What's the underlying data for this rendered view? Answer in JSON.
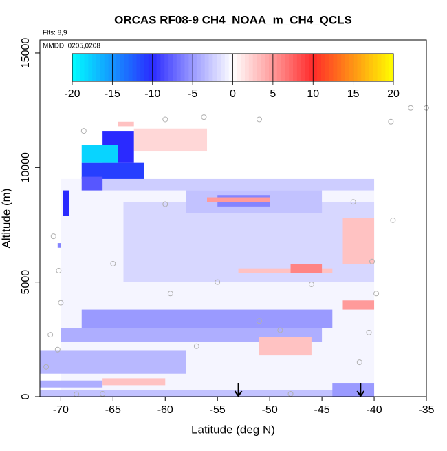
{
  "chart_data": {
    "type": "heatmap",
    "title": "ORCAS RF08-9 CH4_NOAA_m_CH4_QCLS",
    "flights": "Flts: 8,9",
    "dates": "MMDD: 0205,0208",
    "xlabel": "Latitude (deg N)",
    "ylabel": "Altitude (m)",
    "xlim": [
      -72,
      -35
    ],
    "ylim": [
      0,
      15570
    ],
    "xticks": [
      -70,
      -65,
      -60,
      -55,
      -50,
      -45,
      -40,
      -35
    ],
    "yticks": [
      0,
      5000,
      10000,
      15000
    ],
    "colorbar": {
      "lim": [
        -20,
        20
      ],
      "ticks": [
        -20,
        -15,
        -10,
        -5,
        0,
        5,
        10,
        15,
        20
      ],
      "stops": [
        [
          -20,
          "#00ffff"
        ],
        [
          -10,
          "#2a2aff"
        ],
        [
          -5,
          "#9a9aff"
        ],
        [
          0,
          "#ffffff"
        ],
        [
          5,
          "#ff9a9a"
        ],
        [
          10,
          "#ff2a2a"
        ],
        [
          20,
          "#ffff00"
        ]
      ]
    },
    "cells": [
      {
        "x": [
          -70,
          -40
        ],
        "y": [
          0,
          9500
        ],
        "value": -0.5
      },
      {
        "x": [
          -72,
          -40
        ],
        "y": [
          0,
          300
        ],
        "value": -3
      },
      {
        "x": [
          -68,
          -40
        ],
        "y": [
          9000,
          9500
        ],
        "value": -2.5
      },
      {
        "x": [
          -64,
          -40
        ],
        "y": [
          5000,
          8500
        ],
        "value": -2
      },
      {
        "x": [
          -58,
          -45
        ],
        "y": [
          8000,
          9000
        ],
        "value": -3
      },
      {
        "x": [
          -55,
          -50
        ],
        "y": [
          8300,
          8800
        ],
        "value": -6
      },
      {
        "x": [
          -56,
          -50
        ],
        "y": [
          8500,
          8700
        ],
        "value": 5
      },
      {
        "x": [
          -53,
          -44
        ],
        "y": [
          5400,
          5600
        ],
        "value": 3
      },
      {
        "x": [
          -48,
          -45
        ],
        "y": [
          5400,
          5800
        ],
        "value": 6
      },
      {
        "x": [
          -43,
          -40
        ],
        "y": [
          5800,
          7800
        ],
        "value": 3
      },
      {
        "x": [
          -43,
          -40
        ],
        "y": [
          3800,
          4200
        ],
        "value": 5
      },
      {
        "x": [
          -68,
          -44
        ],
        "y": [
          3000,
          3800
        ],
        "value": -5
      },
      {
        "x": [
          -70,
          -45
        ],
        "y": [
          2400,
          3000
        ],
        "value": -4
      },
      {
        "x": [
          -51,
          -46
        ],
        "y": [
          1800,
          2600
        ],
        "value": 3
      },
      {
        "x": [
          -72,
          -58
        ],
        "y": [
          1000,
          2000
        ],
        "value": -3.5
      },
      {
        "x": [
          -72,
          -66
        ],
        "y": [
          400,
          700
        ],
        "value": -4
      },
      {
        "x": [
          -66,
          -60
        ],
        "y": [
          500,
          800
        ],
        "value": 3
      },
      {
        "x": [
          -44,
          -40
        ],
        "y": [
          0,
          600
        ],
        "value": -5
      },
      {
        "x": [
          -63,
          -56
        ],
        "y": [
          10700,
          11700
        ],
        "value": 2
      },
      {
        "x": [
          -64.5,
          -63
        ],
        "y": [
          11800,
          12000
        ],
        "value": 3
      },
      {
        "x": [
          -68,
          -62
        ],
        "y": [
          9500,
          10200
        ],
        "value": -11
      },
      {
        "x": [
          -66,
          -63
        ],
        "y": [
          10200,
          11600
        ],
        "value": -10
      },
      {
        "x": [
          -68,
          -64.5
        ],
        "y": [
          10200,
          11000
        ],
        "value": -18
      },
      {
        "x": [
          -68,
          -66
        ],
        "y": [
          9000,
          9600
        ],
        "value": -8
      },
      {
        "x": [
          -69.8,
          -69.2
        ],
        "y": [
          7900,
          9000
        ],
        "value": -10
      },
      {
        "x": [
          -70.3,
          -70
        ],
        "y": [
          6500,
          6700
        ],
        "value": -6
      }
    ],
    "points": {
      "x": [
        -67.8,
        -60,
        -56.3,
        -51,
        -38.4,
        -36.5,
        -35,
        -70.7,
        -70.2,
        -65,
        -70,
        -59.5,
        -71,
        -70.3,
        -71.4,
        -66,
        -68.5,
        -48,
        -60,
        -55,
        -51,
        -46,
        -42,
        -38.2,
        -40.2,
        -39.8,
        -41.4,
        -49,
        -57,
        -40.5
      ],
      "y": [
        11600,
        12100,
        12200,
        12100,
        12000,
        12600,
        12600,
        7000,
        5500,
        5800,
        4100,
        4500,
        2700,
        2050,
        1300,
        120,
        100,
        120,
        8400,
        5000,
        3300,
        4900,
        8500,
        7700,
        5900,
        4500,
        1500,
        2900,
        2200,
        2800
      ]
    },
    "arrows": {
      "x": [
        -53,
        -41.3
      ]
    }
  }
}
